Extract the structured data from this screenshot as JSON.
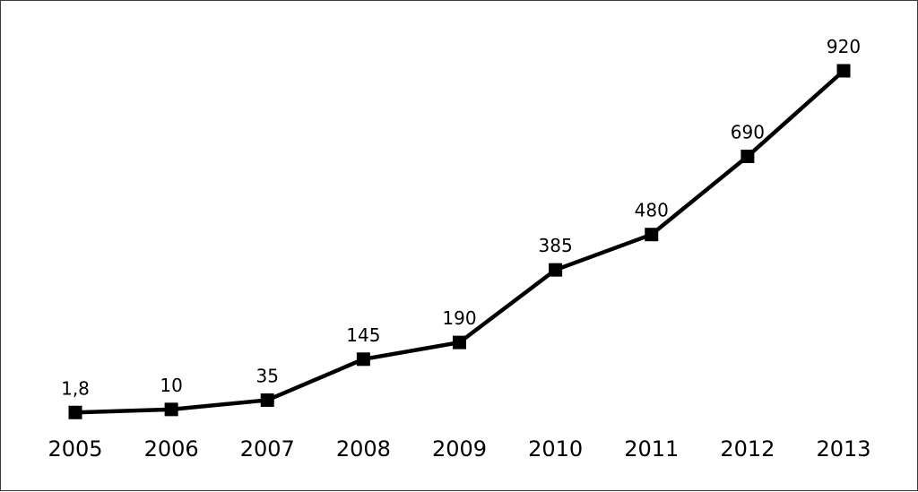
{
  "chart_data": {
    "type": "line",
    "title": "",
    "xlabel": "",
    "ylabel": "",
    "categories": [
      "2005",
      "2006",
      "2007",
      "2008",
      "2009",
      "2010",
      "2011",
      "2012",
      "2013"
    ],
    "series": [
      {
        "values": [
          1.8,
          10,
          35,
          145,
          190,
          385,
          480,
          690,
          920
        ],
        "data_labels": [
          "1,8",
          "10",
          "35",
          "145",
          "190",
          "385",
          "480",
          "690",
          "920"
        ],
        "color": "#000000",
        "marker": "square"
      }
    ],
    "ylim": [
      0,
      920
    ],
    "y_axis_visible": false,
    "grid": false,
    "legend": "none"
  }
}
